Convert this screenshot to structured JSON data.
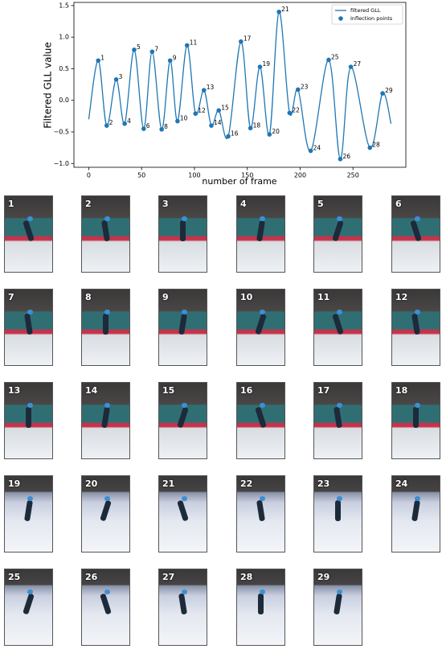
{
  "chart_data": {
    "type": "line",
    "x_label": "number of frame",
    "y_label": "Filtered GLL value",
    "xlim": [
      -14,
      300
    ],
    "ylim": [
      -1.06,
      1.55
    ],
    "xticks": [
      0,
      50,
      100,
      150,
      200,
      250
    ],
    "yticks": [
      {
        "value": -1.0,
        "label": "−1.0"
      },
      {
        "value": -0.5,
        "label": "−0.5"
      },
      {
        "value": 0.0,
        "label": "0.0"
      },
      {
        "value": 0.5,
        "label": "0.5"
      },
      {
        "value": 1.0,
        "label": "1.0"
      },
      {
        "value": 1.5,
        "label": "1.5"
      }
    ],
    "legend": "upper right",
    "series": [
      {
        "name": "filtered GLL",
        "color": "#1f77b4",
        "kind": "line",
        "x": [
          0,
          9,
          17,
          26,
          34,
          43,
          52,
          60,
          69,
          77,
          84,
          93,
          101,
          109,
          116,
          123,
          132,
          144,
          153,
          162,
          171,
          180,
          190,
          198,
          210,
          227,
          238,
          248,
          266,
          278,
          286
        ],
        "values": [
          -0.3,
          0.63,
          -0.4,
          0.33,
          -0.37,
          0.8,
          -0.45,
          0.77,
          -0.46,
          0.63,
          -0.33,
          0.87,
          -0.21,
          0.16,
          -0.4,
          -0.16,
          -0.57,
          0.93,
          -0.44,
          0.53,
          -0.54,
          1.4,
          -0.2,
          0.17,
          -0.8,
          0.64,
          -0.93,
          0.53,
          -0.75,
          0.11,
          -0.37
        ]
      },
      {
        "name": "Inflection points",
        "color": "#1f77b4",
        "kind": "scatter",
        "x": [
          9,
          17,
          26,
          34,
          43,
          52,
          60,
          69,
          77,
          84,
          93,
          101,
          109,
          116,
          123,
          132,
          144,
          153,
          162,
          171,
          180,
          190,
          198,
          210,
          227,
          238,
          248,
          266,
          278
        ],
        "values": [
          0.63,
          -0.4,
          0.33,
          -0.37,
          0.8,
          -0.45,
          0.77,
          -0.46,
          0.63,
          -0.33,
          0.87,
          -0.21,
          0.16,
          -0.4,
          -0.16,
          -0.57,
          0.93,
          -0.44,
          0.53,
          -0.54,
          1.4,
          -0.2,
          0.17,
          -0.8,
          0.64,
          -0.93,
          0.53,
          -0.75,
          0.11
        ],
        "point_labels": [
          "1",
          "2",
          "3",
          "4",
          "5",
          "6",
          "7",
          "8",
          "9",
          "10",
          "11",
          "12",
          "13",
          "14",
          "15",
          "16",
          "17",
          "18",
          "19",
          "20",
          "21",
          "22",
          "23",
          "24",
          "25",
          "26",
          "27",
          "28",
          "29"
        ]
      }
    ]
  },
  "panels": [
    "1",
    "2",
    "3",
    "4",
    "5",
    "6",
    "7",
    "8",
    "9",
    "10",
    "11",
    "12",
    "13",
    "14",
    "15",
    "16",
    "17",
    "18",
    "19",
    "20",
    "21",
    "22",
    "23",
    "24",
    "25",
    "26",
    "27",
    "28",
    "29"
  ]
}
